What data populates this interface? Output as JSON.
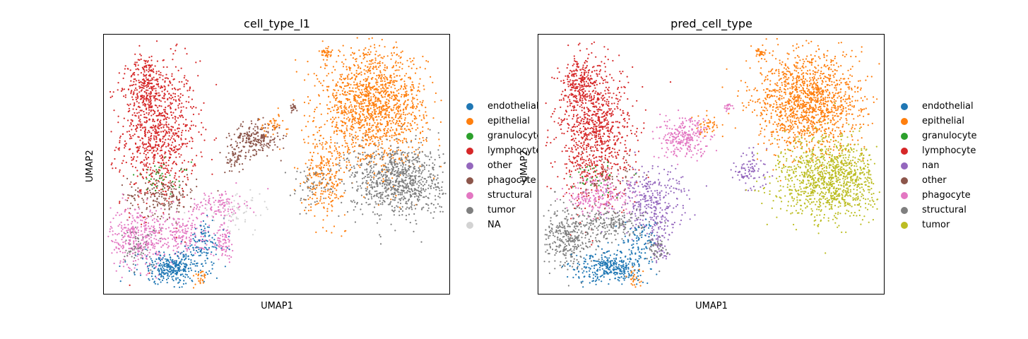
{
  "figure": {
    "xlabel": "UMAP1",
    "ylabel": "UMAP2"
  },
  "chart_data": [
    {
      "type": "scatter",
      "title": "cell_type_l1",
      "xlabel": "UMAP1",
      "ylabel": "UMAP2",
      "xticks": [],
      "yticks": [],
      "legend": [
        {
          "name": "endothelial",
          "color": "#1f77b4"
        },
        {
          "name": "epithelial",
          "color": "#ff7f0e"
        },
        {
          "name": "granulocyte",
          "color": "#2ca02c"
        },
        {
          "name": "lymphocyte",
          "color": "#d62728"
        },
        {
          "name": "other",
          "color": "#9467bd"
        },
        {
          "name": "phagocyte",
          "color": "#8c564b"
        },
        {
          "name": "structural",
          "color": "#e377c2"
        },
        {
          "name": "tumor",
          "color": "#7f7f7f"
        },
        {
          "name": "NA",
          "color": "#d3d3d3"
        }
      ],
      "legend_position": "right, outside",
      "clusters": [
        {
          "series": "lymphocyte",
          "x": 0.16,
          "y": 0.62,
          "sx": 0.055,
          "sy": 0.14,
          "n": 900
        },
        {
          "series": "lymphocyte",
          "x": 0.12,
          "y": 0.8,
          "sx": 0.025,
          "sy": 0.06,
          "n": 220
        },
        {
          "series": "phagocyte",
          "x": 0.17,
          "y": 0.38,
          "sx": 0.05,
          "sy": 0.04,
          "n": 180
        },
        {
          "series": "phagocyte",
          "x": 0.44,
          "y": 0.6,
          "sx": 0.035,
          "sy": 0.03,
          "n": 220
        },
        {
          "series": "phagocyte",
          "x": 0.38,
          "y": 0.52,
          "sx": 0.015,
          "sy": 0.035,
          "n": 60
        },
        {
          "series": "phagocyte",
          "x": 0.55,
          "y": 0.72,
          "sx": 0.006,
          "sy": 0.008,
          "n": 20
        },
        {
          "series": "structural",
          "x": 0.1,
          "y": 0.22,
          "sx": 0.04,
          "sy": 0.06,
          "n": 350
        },
        {
          "series": "structural",
          "x": 0.23,
          "y": 0.22,
          "sx": 0.045,
          "sy": 0.04,
          "n": 180
        },
        {
          "series": "structural",
          "x": 0.35,
          "y": 0.2,
          "sx": 0.012,
          "sy": 0.03,
          "n": 70
        },
        {
          "series": "structural",
          "x": 0.33,
          "y": 0.34,
          "sx": 0.04,
          "sy": 0.03,
          "n": 120
        },
        {
          "series": "endothelial",
          "x": 0.2,
          "y": 0.1,
          "sx": 0.05,
          "sy": 0.03,
          "n": 330
        },
        {
          "series": "endothelial",
          "x": 0.29,
          "y": 0.2,
          "sx": 0.03,
          "sy": 0.04,
          "n": 90
        },
        {
          "series": "granulocyte",
          "x": 0.17,
          "y": 0.45,
          "sx": 0.04,
          "sy": 0.03,
          "n": 40
        },
        {
          "series": "epithelial",
          "x": 0.78,
          "y": 0.72,
          "sx": 0.075,
          "sy": 0.11,
          "n": 1500
        },
        {
          "series": "epithelial",
          "x": 0.64,
          "y": 0.46,
          "sx": 0.03,
          "sy": 0.08,
          "n": 250
        },
        {
          "series": "epithelial",
          "x": 0.64,
          "y": 0.93,
          "sx": 0.01,
          "sy": 0.01,
          "n": 35
        },
        {
          "series": "epithelial",
          "x": 0.49,
          "y": 0.65,
          "sx": 0.02,
          "sy": 0.02,
          "n": 40
        },
        {
          "series": "epithelial",
          "x": 0.28,
          "y": 0.06,
          "sx": 0.01,
          "sy": 0.02,
          "n": 25
        },
        {
          "series": "tumor",
          "x": 0.85,
          "y": 0.44,
          "sx": 0.07,
          "sy": 0.07,
          "n": 900
        },
        {
          "series": "tumor",
          "x": 0.6,
          "y": 0.42,
          "sx": 0.03,
          "sy": 0.04,
          "n": 60
        },
        {
          "series": "tumor",
          "x": 0.1,
          "y": 0.18,
          "sx": 0.03,
          "sy": 0.04,
          "n": 60
        },
        {
          "series": "NA",
          "x": 0.38,
          "y": 0.32,
          "sx": 0.05,
          "sy": 0.04,
          "n": 60
        }
      ]
    },
    {
      "type": "scatter",
      "title": "pred_cell_type",
      "xlabel": "UMAP1",
      "ylabel": "UMAP2",
      "xticks": [],
      "yticks": [],
      "legend": [
        {
          "name": "endothelial",
          "color": "#1f77b4"
        },
        {
          "name": "epithelial",
          "color": "#ff7f0e"
        },
        {
          "name": "granulocyte",
          "color": "#2ca02c"
        },
        {
          "name": "lymphocyte",
          "color": "#d62728"
        },
        {
          "name": "nan",
          "color": "#9467bd"
        },
        {
          "name": "other",
          "color": "#8c564b"
        },
        {
          "name": "phagocyte",
          "color": "#e377c2"
        },
        {
          "name": "structural",
          "color": "#7f7f7f"
        },
        {
          "name": "tumor",
          "color": "#bcbd22"
        }
      ],
      "legend_position": "right, outside",
      "clusters": [
        {
          "series": "lymphocyte",
          "x": 0.16,
          "y": 0.62,
          "sx": 0.055,
          "sy": 0.14,
          "n": 950
        },
        {
          "series": "lymphocyte",
          "x": 0.12,
          "y": 0.8,
          "sx": 0.025,
          "sy": 0.06,
          "n": 220
        },
        {
          "series": "phagocyte",
          "x": 0.18,
          "y": 0.38,
          "sx": 0.05,
          "sy": 0.04,
          "n": 220
        },
        {
          "series": "phagocyte",
          "x": 0.42,
          "y": 0.6,
          "sx": 0.04,
          "sy": 0.04,
          "n": 260
        },
        {
          "series": "phagocyte",
          "x": 0.55,
          "y": 0.72,
          "sx": 0.006,
          "sy": 0.008,
          "n": 20
        },
        {
          "series": "nan",
          "x": 0.33,
          "y": 0.36,
          "sx": 0.05,
          "sy": 0.06,
          "n": 320
        },
        {
          "series": "nan",
          "x": 0.35,
          "y": 0.2,
          "sx": 0.015,
          "sy": 0.04,
          "n": 70
        },
        {
          "series": "nan",
          "x": 0.61,
          "y": 0.48,
          "sx": 0.025,
          "sy": 0.04,
          "n": 90
        },
        {
          "series": "structural",
          "x": 0.09,
          "y": 0.22,
          "sx": 0.04,
          "sy": 0.06,
          "n": 360
        },
        {
          "series": "structural",
          "x": 0.22,
          "y": 0.27,
          "sx": 0.05,
          "sy": 0.03,
          "n": 180
        },
        {
          "series": "structural",
          "x": 0.34,
          "y": 0.17,
          "sx": 0.015,
          "sy": 0.025,
          "n": 50
        },
        {
          "series": "endothelial",
          "x": 0.21,
          "y": 0.1,
          "sx": 0.05,
          "sy": 0.03,
          "n": 330
        },
        {
          "series": "endothelial",
          "x": 0.29,
          "y": 0.2,
          "sx": 0.03,
          "sy": 0.04,
          "n": 90
        },
        {
          "series": "granulocyte",
          "x": 0.17,
          "y": 0.45,
          "sx": 0.04,
          "sy": 0.03,
          "n": 35
        },
        {
          "series": "other",
          "x": 0.2,
          "y": 0.45,
          "sx": 0.05,
          "sy": 0.04,
          "n": 40
        },
        {
          "series": "epithelial",
          "x": 0.78,
          "y": 0.74,
          "sx": 0.075,
          "sy": 0.1,
          "n": 1400
        },
        {
          "series": "epithelial",
          "x": 0.64,
          "y": 0.93,
          "sx": 0.01,
          "sy": 0.01,
          "n": 35
        },
        {
          "series": "epithelial",
          "x": 0.49,
          "y": 0.65,
          "sx": 0.02,
          "sy": 0.02,
          "n": 40
        },
        {
          "series": "epithelial",
          "x": 0.28,
          "y": 0.06,
          "sx": 0.01,
          "sy": 0.02,
          "n": 25
        },
        {
          "series": "tumor",
          "x": 0.84,
          "y": 0.44,
          "sx": 0.075,
          "sy": 0.08,
          "n": 1100
        }
      ]
    }
  ]
}
